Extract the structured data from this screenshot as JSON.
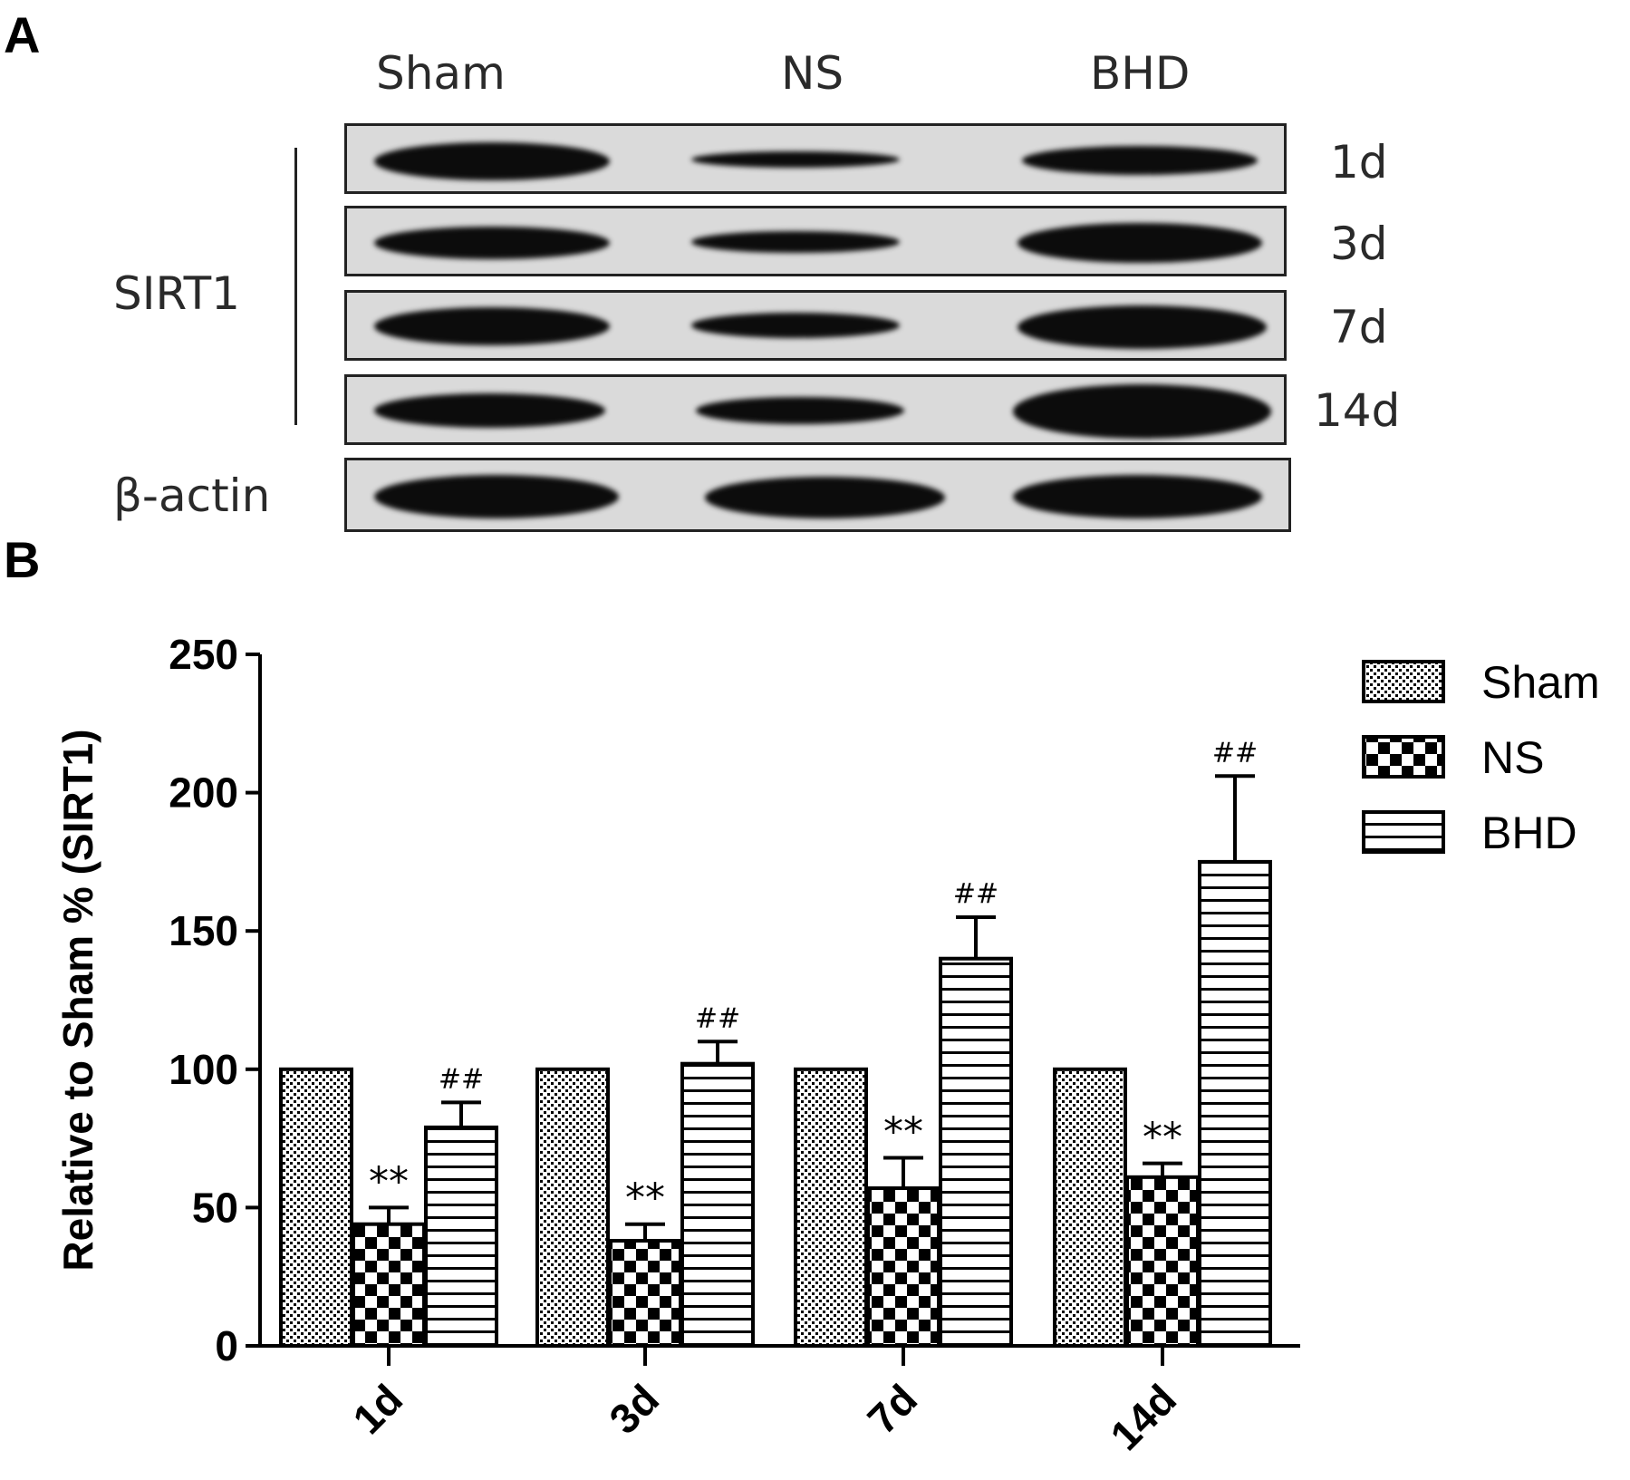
{
  "panels": {
    "a_label": "A",
    "b_label": "B"
  },
  "blot": {
    "groups": [
      "Sham",
      "NS",
      "BHD"
    ],
    "protein_label": "SIRT1",
    "loading_control": "β-actin",
    "timepoints": [
      "1d",
      "3d",
      "7d",
      "14d"
    ]
  },
  "chart_data": {
    "type": "bar",
    "categories": [
      "1d",
      "3d",
      "7d",
      "14d"
    ],
    "series": [
      {
        "name": "Sham",
        "values": [
          100,
          100,
          100,
          100
        ],
        "errors": [
          0,
          0,
          0,
          0
        ],
        "annotations": [
          "",
          "",
          "",
          ""
        ],
        "pattern": "fine-dots"
      },
      {
        "name": "NS",
        "values": [
          44,
          38,
          57,
          61
        ],
        "errors": [
          6,
          6,
          11,
          5
        ],
        "annotations": [
          "**",
          "**",
          "**",
          "**"
        ],
        "pattern": "checker"
      },
      {
        "name": "BHD",
        "values": [
          79,
          102,
          140,
          175
        ],
        "errors": [
          9,
          8,
          15,
          31
        ],
        "annotations": [
          "##",
          "##",
          "##",
          "##"
        ],
        "pattern": "horizontal-lines"
      }
    ],
    "ylabel": "Relative to Sham % (SIRT1)",
    "xlabel": "",
    "ylim": [
      0,
      250
    ],
    "yticks": [
      0,
      50,
      100,
      150,
      200,
      250
    ],
    "legend_position": "top-right",
    "grid": false
  }
}
